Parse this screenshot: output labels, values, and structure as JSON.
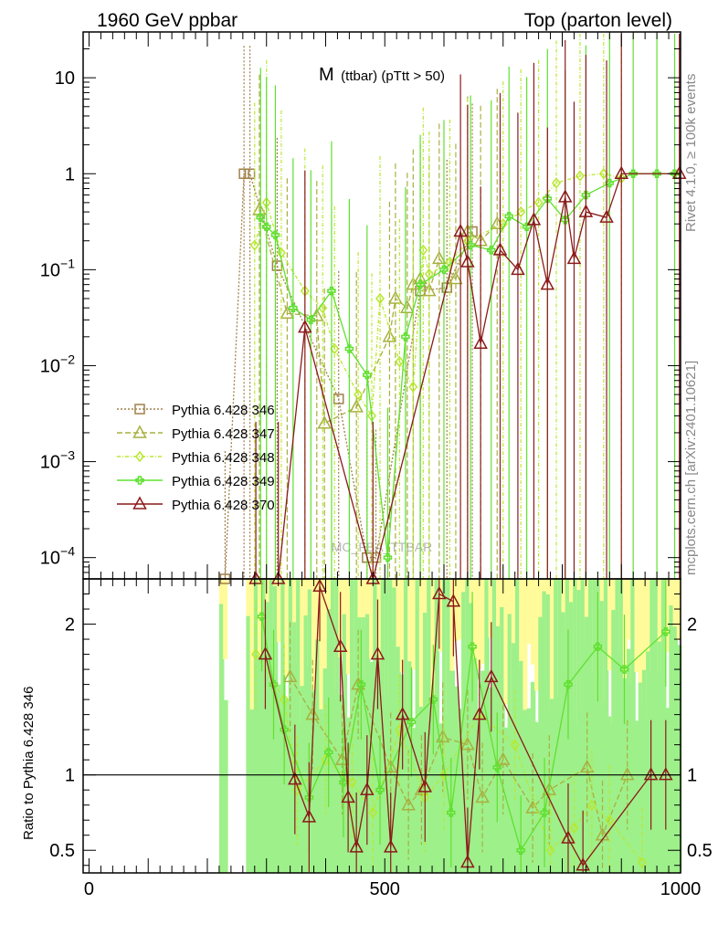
{
  "header": {
    "left": "1960 GeV ppbar",
    "right": "Top (parton level)"
  },
  "side_labels": {
    "rivet": "Rivet 4.1.0, ≥ 100k events",
    "mcplots": "mcplots.cern.ch [arXiv:2401.10621]"
  },
  "chart_data": {
    "type": "line",
    "title": "M (ttbar) (pTtt > 50)",
    "title_main": "M",
    "title_sub": "(ttbar) (pTtt > 50)",
    "watermark": "MC_FBA_TTBAR",
    "xlim": [
      -10,
      1000
    ],
    "x_ticks": [
      {
        "value": 0,
        "label": "0"
      },
      {
        "value": 500,
        "label": "500"
      },
      {
        "value": 1000,
        "label": "1000"
      }
    ],
    "upper": {
      "yscale": "log",
      "ylim": [
        6e-05,
        30
      ],
      "y_ticks": [
        {
          "value": 0.0001,
          "base": "10",
          "exp": "−4"
        },
        {
          "value": 0.001,
          "base": "10",
          "exp": "−3"
        },
        {
          "value": 0.01,
          "base": "10",
          "exp": "−2"
        },
        {
          "value": 0.1,
          "base": "10",
          "exp": "−1"
        },
        {
          "value": 1,
          "base": "1",
          "exp": ""
        },
        {
          "value": 10,
          "base": "10",
          "exp": ""
        }
      ]
    },
    "lower": {
      "ylabel": "Ratio to Pythia 6.428 346",
      "ylim": [
        0.35,
        2.3
      ],
      "y_ticks": [
        {
          "value": 0.5,
          "label": "0.5"
        },
        {
          "value": 1,
          "label": "1"
        },
        {
          "value": 2,
          "label": "2"
        }
      ],
      "reference_line": 1
    },
    "series": [
      {
        "name": "Pythia 6.428 346",
        "color": "#a0804a",
        "marker": "square",
        "dash": "2,2",
        "x": [
          230,
          262,
          272,
          318,
          422,
          470,
          485,
          560,
          605,
          648
        ],
        "values": [
          6e-05,
          1.0,
          1.0,
          0.11,
          0.0045,
          0.0001,
          0.0001,
          0.06,
          0.065,
          0.25
        ],
        "ratio_x": [],
        "ratio": []
      },
      {
        "name": "Pythia 6.428 347",
        "color": "#a8b040",
        "marker": "triangle",
        "dash": "6,3",
        "x": [
          288,
          335,
          385,
          398,
          452,
          508,
          518,
          538,
          548,
          560,
          575,
          592,
          620,
          640,
          662,
          690
        ],
        "values": [
          0.42,
          0.035,
          0.033,
          0.0025,
          0.0037,
          0.02,
          0.05,
          0.04,
          0.07,
          0.08,
          0.06,
          0.13,
          0.08,
          0.25,
          0.2,
          0.3
        ],
        "ratio_x": [
          340,
          378,
          428,
          455,
          510,
          540,
          562,
          598,
          640,
          665,
          700,
          750,
          778,
          842,
          868,
          910
        ],
        "ratio": [
          1.65,
          1.4,
          1.1,
          1.6,
          1.05,
          0.8,
          0.9,
          1.25,
          1.2,
          0.85,
          1.1,
          0.78,
          0.9,
          1.05,
          0.6,
          1.0
        ]
      },
      {
        "name": "Pythia 6.428 348",
        "color": "#b8e830",
        "marker": "diamond",
        "dash": "4,2,1,2",
        "x": [
          280,
          300,
          325,
          365,
          395,
          415,
          455,
          478,
          492,
          525,
          548,
          565,
          575,
          610,
          640,
          700,
          730,
          760,
          790,
          830,
          870,
          900
        ],
        "values": [
          0.18,
          0.5,
          0.15,
          0.06,
          0.04,
          0.015,
          0.005,
          0.003,
          0.05,
          0.011,
          0.006,
          0.16,
          0.09,
          0.12,
          0.2,
          0.3,
          0.4,
          0.5,
          0.8,
          0.95,
          1.0,
          0.9
        ],
        "ratio_x": [
          282,
          330,
          352,
          400,
          445,
          480,
          525,
          568,
          600,
          660,
          720,
          780,
          820,
          850,
          880,
          935
        ],
        "ratio": [
          1.8,
          1.5,
          0.9,
          1.1,
          0.95,
          0.75,
          1.3,
          0.85,
          1.0,
          1.4,
          1.2,
          0.5,
          0.65,
          0.8,
          0.7,
          0.42
        ]
      },
      {
        "name": "Pythia 6.428 349",
        "color": "#60e030",
        "marker": "plus",
        "dash": "",
        "x": [
          290,
          300,
          315,
          345,
          375,
          410,
          440,
          470,
          505,
          535,
          560,
          600,
          645,
          680,
          710,
          740,
          775,
          805,
          840,
          880,
          920,
          960,
          990
        ],
        "values": [
          0.35,
          0.28,
          0.23,
          0.04,
          0.03,
          0.06,
          0.015,
          0.008,
          0.0001,
          0.02,
          0.07,
          0.1,
          0.18,
          0.16,
          0.36,
          0.28,
          0.55,
          0.33,
          0.6,
          0.8,
          1.0,
          1.0,
          1.0
        ],
        "ratio_x": [
          292,
          312,
          330,
          372,
          405,
          430,
          460,
          492,
          545,
          582,
          612,
          648,
          690,
          730,
          770,
          810,
          860,
          905,
          975
        ],
        "ratio": [
          2.05,
          1.6,
          1.3,
          0.85,
          1.15,
          0.95,
          1.6,
          0.9,
          1.35,
          1.5,
          0.75,
          1.85,
          1.05,
          0.5,
          0.75,
          1.6,
          1.85,
          1.7,
          1.95
        ]
      },
      {
        "name": "Pythia 6.428 370",
        "color": "#8b1a1a",
        "marker": "triangle",
        "dash": "",
        "x": [
          282,
          320,
          365,
          480,
          628,
          640,
          662,
          695,
          725,
          752,
          775,
          805,
          820,
          840,
          875,
          900,
          998
        ],
        "values": [
          6e-05,
          6e-05,
          0.025,
          6e-05,
          0.25,
          0.12,
          0.017,
          0.16,
          0.1,
          0.33,
          0.07,
          0.57,
          0.13,
          0.4,
          0.35,
          1.0,
          1.0
        ],
        "ratio_x": [
          298,
          348,
          372,
          390,
          425,
          438,
          452,
          470,
          488,
          510,
          530,
          568,
          592,
          616,
          640,
          660,
          680,
          810,
          835,
          950,
          975
        ],
        "ratio": [
          1.8,
          0.97,
          0.72,
          2.25,
          1.85,
          0.85,
          0.52,
          0.9,
          1.8,
          0.52,
          1.4,
          0.92,
          2.2,
          2.15,
          0.42,
          1.4,
          1.65,
          0.58,
          0.4,
          1.0,
          1.0
        ]
      }
    ]
  }
}
